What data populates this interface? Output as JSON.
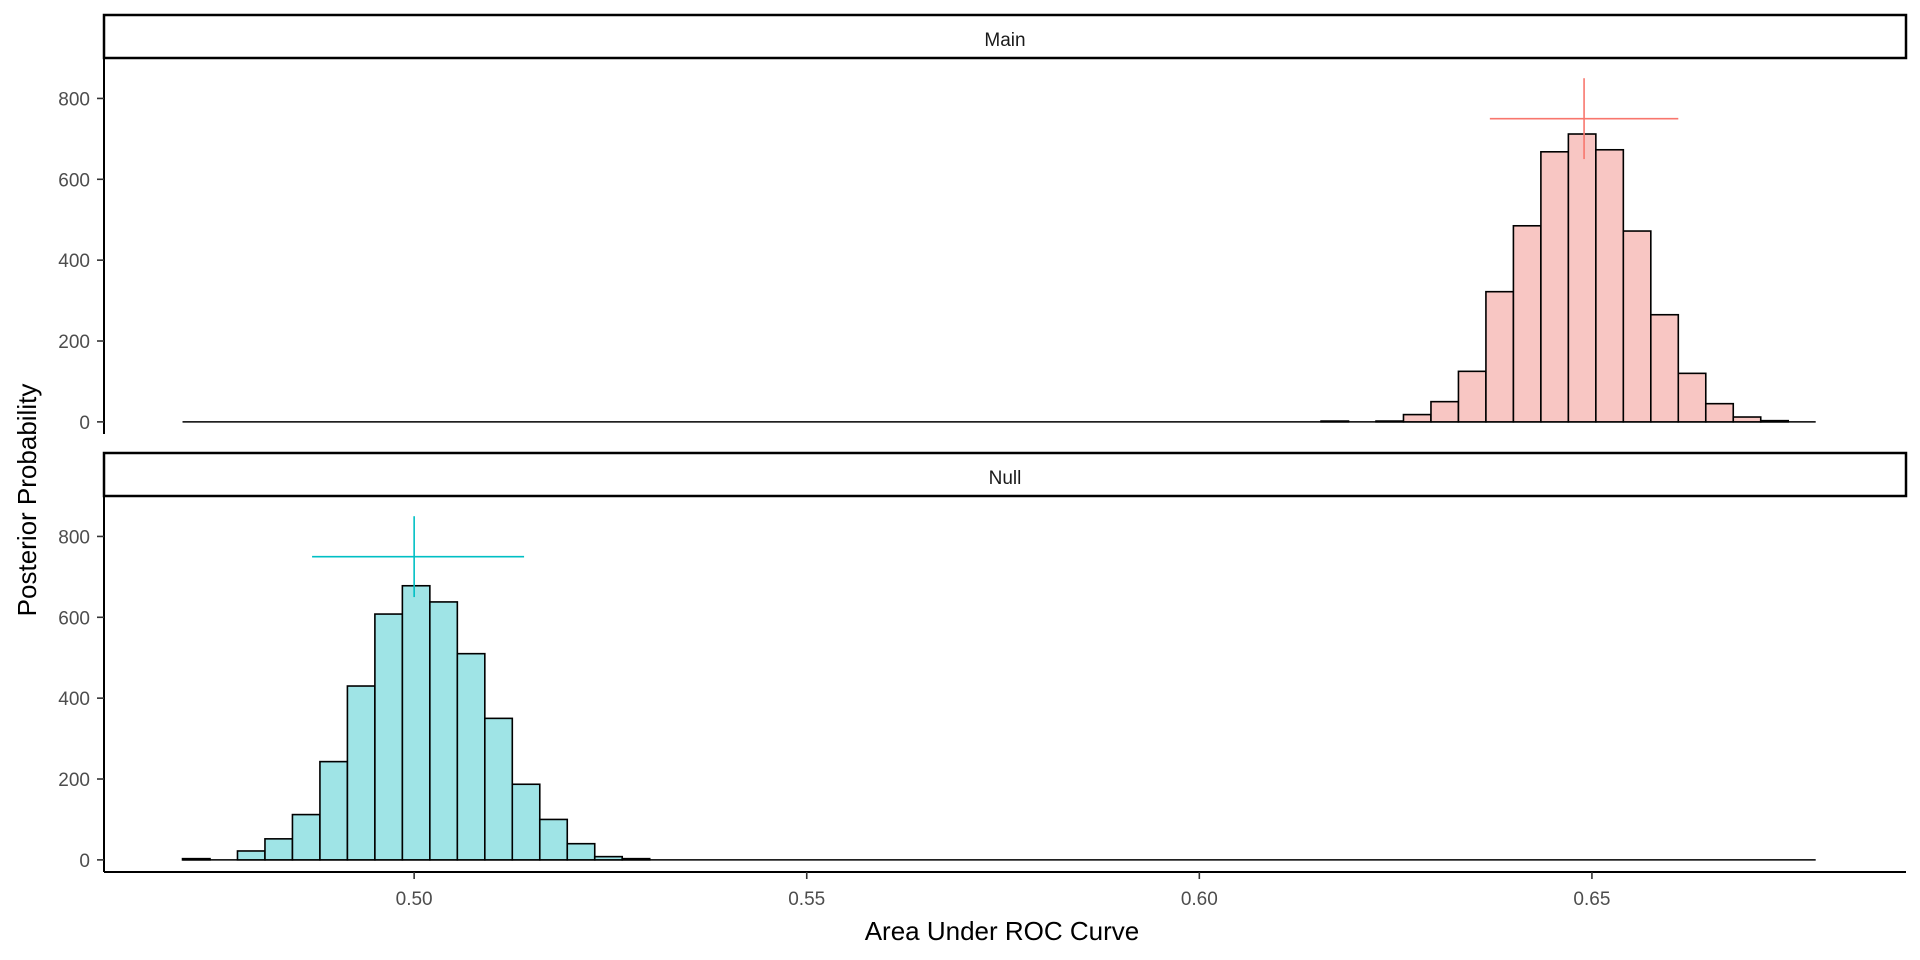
{
  "chart_data": {
    "type": "bar",
    "subtype": "faceted-histogram",
    "xlabel": "Area Under ROC Curve",
    "ylabel": "Posterior Probability",
    "xlim": [
      0.4605,
      0.69
    ],
    "ylim": [
      -30,
      900
    ],
    "bin_width": 0.0035,
    "x_ticks": [
      {
        "value": 0.5,
        "label": "0.50"
      },
      {
        "value": 0.55,
        "label": "0.55"
      },
      {
        "value": 0.6,
        "label": "0.60"
      },
      {
        "value": 0.65,
        "label": "0.65"
      }
    ],
    "y_ticks": [
      {
        "value": 0,
        "label": "0"
      },
      {
        "value": 200,
        "label": "200"
      },
      {
        "value": 400,
        "label": "400"
      },
      {
        "value": 600,
        "label": "600"
      },
      {
        "value": 800,
        "label": "800"
      }
    ],
    "baseline_range": [
      0.4705,
      0.6785
    ],
    "panels": [
      {
        "name": "Main",
        "strip_label": "Main",
        "fill": "#f8c6c3",
        "accent": "#f8766d",
        "bins_start": 0.6155,
        "counts": [
          2,
          0,
          2,
          18,
          50,
          125,
          322,
          485,
          668,
          712,
          673,
          472,
          265,
          120,
          45,
          12,
          3
        ],
        "estimate": {
          "x": 0.649,
          "y": 750,
          "x_low": 0.637,
          "x_high": 0.661,
          "y_low": 650,
          "y_high": 850
        }
      },
      {
        "name": "Null",
        "strip_label": "Null",
        "fill": "#9fe4e6",
        "accent": "#00bfc4",
        "bins_start": 0.4705,
        "counts": [
          3,
          0,
          22,
          52,
          112,
          243,
          430,
          608,
          678,
          638,
          510,
          350,
          187,
          100,
          40,
          8,
          3
        ],
        "estimate": {
          "x": 0.5,
          "y": 750,
          "x_low": 0.487,
          "x_high": 0.514,
          "y_low": 650,
          "y_high": 850
        }
      }
    ]
  }
}
